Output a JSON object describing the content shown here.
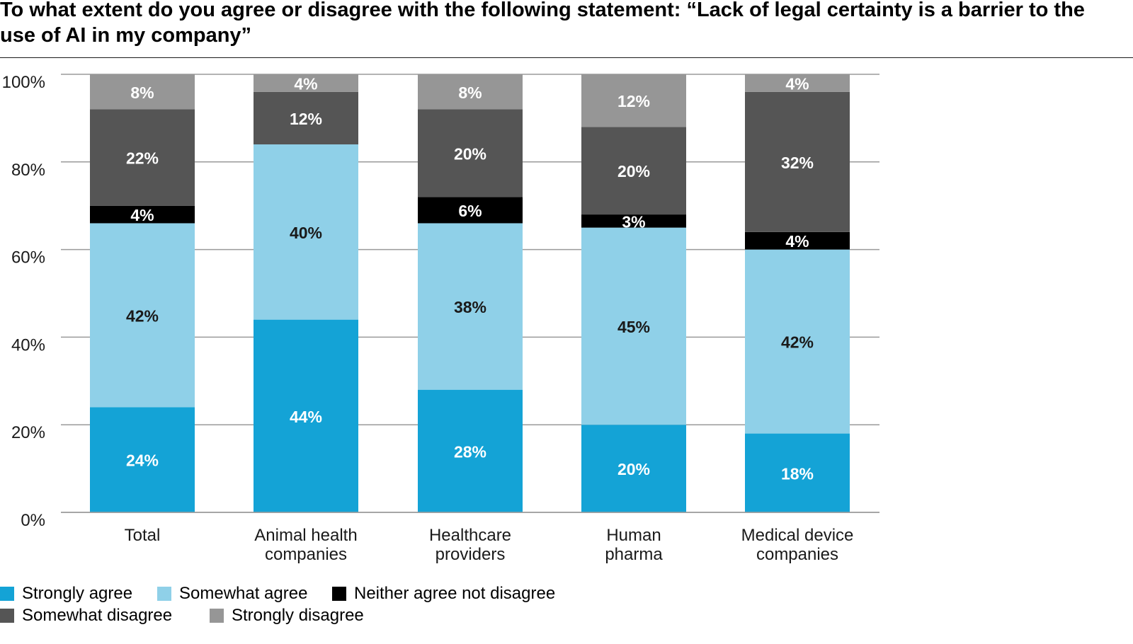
{
  "title": "To what extent do you agree or disagree with the following statement: “Lack of legal certainty is a barrier to the use of AI in my company”",
  "chart_data": {
    "type": "bar",
    "stacked": true,
    "categories": [
      [
        "Total"
      ],
      [
        "Animal health",
        "companies"
      ],
      [
        "Healthcare",
        "providers"
      ],
      [
        "Human",
        "pharma"
      ],
      [
        "Medical device",
        "companies"
      ]
    ],
    "series": [
      {
        "name": "Strongly agree",
        "color": "#14a3d6",
        "label_color": "#ffffff",
        "values": [
          24,
          44,
          28,
          20,
          18
        ]
      },
      {
        "name": "Somewhat agree",
        "color": "#8fd0e8",
        "label_color": "#1a1a1a",
        "values": [
          42,
          40,
          38,
          45,
          42
        ]
      },
      {
        "name": "Neither agree not disagree",
        "color": "#000000",
        "label_color": "#ffffff",
        "values": [
          4,
          0,
          6,
          3,
          4
        ]
      },
      {
        "name": "Somewhat disagree",
        "color": "#555555",
        "label_color": "#ffffff",
        "values": [
          22,
          12,
          20,
          20,
          32
        ]
      },
      {
        "name": "Strongly disagree",
        "color": "#969696",
        "label_color": "#ffffff",
        "values": [
          8,
          4,
          8,
          12,
          4
        ]
      }
    ],
    "ylim": [
      0,
      100
    ],
    "yticks": [
      0,
      20,
      40,
      60,
      80,
      100
    ],
    "ytick_labels": [
      "0%",
      "20%",
      "40%",
      "60%",
      "80%",
      "100%"
    ],
    "value_suffix": "%",
    "grid": true,
    "legend_position": "bottom-left"
  }
}
